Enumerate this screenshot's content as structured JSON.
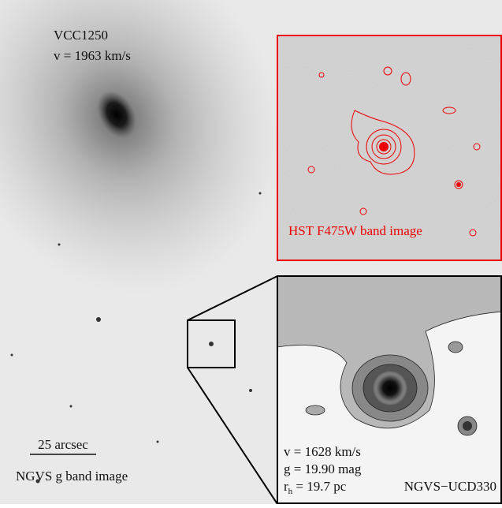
{
  "main_panel": {
    "name": "VCC1250",
    "velocity": "v = 1963 km/s",
    "scale_bar": "25 arcsec",
    "caption": "NGVS g band image"
  },
  "hst_inset": {
    "caption": "HST F475W band image"
  },
  "ngvs_inset": {
    "velocity": "v = 1628 km/s",
    "magnitude": "g = 19.90 mag",
    "radius": {
      "base": "r",
      "sub": "h",
      "rest": " = 19.7 pc"
    },
    "object": "NGVS−UCD330"
  }
}
